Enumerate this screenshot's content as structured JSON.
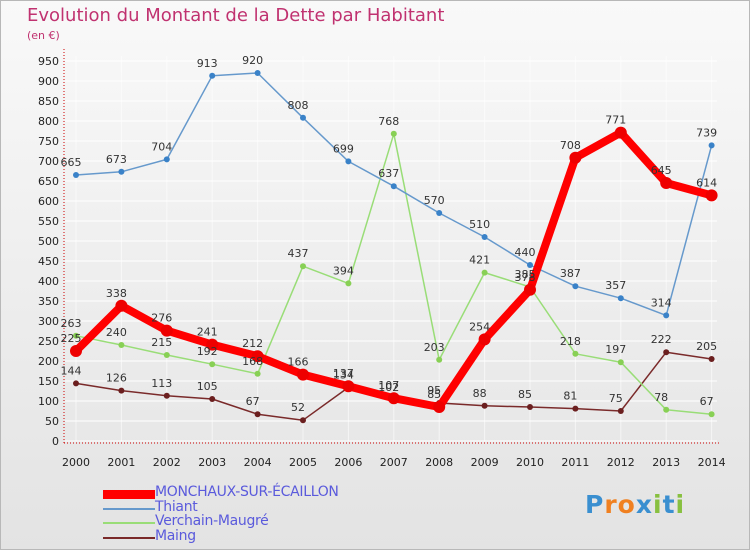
{
  "title": "Evolution du Montant de la Dette par Habitant",
  "unit": "(en €)",
  "logo": "Proxiti",
  "colors": {
    "title": "#c03270",
    "axis": "#cc0000",
    "grid": "#ffffff",
    "legend_text": "#5a5adc"
  },
  "chart_data": {
    "type": "line",
    "title": "Evolution du Montant de la Dette par Habitant",
    "ylabel": "(en €)",
    "xlabel": "",
    "ylim": [
      0,
      950
    ],
    "ytick_step": 50,
    "grid": true,
    "legend_position": "bottom-left",
    "categories": [
      "2000",
      "2001",
      "2002",
      "2003",
      "2004",
      "2005",
      "2006",
      "2007",
      "2008",
      "2009",
      "2010",
      "2011",
      "2012",
      "2013",
      "2014"
    ],
    "series": [
      {
        "name": "Maing",
        "color": "#7a2a2a",
        "dot": "#6b1f1f",
        "width": 1.5,
        "marker": 3,
        "values": [
          144,
          126,
          113,
          105,
          67,
          52,
          134,
          102,
          95,
          88,
          85,
          81,
          75,
          222,
          205
        ]
      },
      {
        "name": "Verchain-Maugré",
        "color": "#99dd77",
        "dot": "#88d055",
        "width": 1.5,
        "marker": 3,
        "values": [
          263,
          240,
          215,
          192,
          168,
          437,
          394,
          768,
          203,
          421,
          385,
          218,
          197,
          78,
          67
        ]
      },
      {
        "name": "Thiant",
        "color": "#6699cc",
        "dot": "#3a82c8",
        "width": 1.5,
        "marker": 3,
        "values": [
          665,
          673,
          704,
          913,
          920,
          808,
          699,
          637,
          570,
          510,
          440,
          387,
          357,
          314,
          739
        ]
      },
      {
        "name": "MONCHAUX-SUR-ÉCAILLON",
        "color": "#ff0000",
        "dot": "#ee0000",
        "width": 8,
        "marker": 6,
        "values": [
          225,
          338,
          276,
          241,
          212,
          166,
          137,
          107,
          85,
          254,
          378,
          708,
          771,
          645,
          614
        ]
      }
    ],
    "legend_order": [
      "MONCHAUX-SUR-ÉCAILLON",
      "Thiant",
      "Verchain-Maugré",
      "Maing"
    ]
  }
}
